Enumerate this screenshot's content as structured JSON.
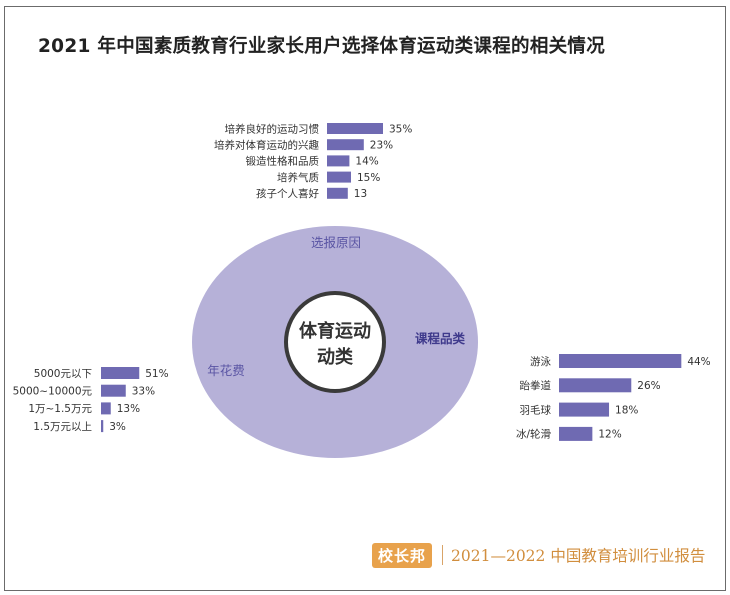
{
  "title": "2021 年中国素质教育行业家长用户选择体育运动类课程的相关情况",
  "center_label_line1": "体育运动",
  "center_label_line2": "动类",
  "ring_labels": {
    "top": "选报原因",
    "right": "课程品类",
    "left": "年花费"
  },
  "brand": {
    "logo_text": "校长邦",
    "report_text": "2021—2022 中国教育培训行业报告"
  },
  "colors": {
    "bar": "#6f6ab2",
    "ring": "#b6b1d8",
    "ring_label": "#5a55a4",
    "right_label": "#3f3a8c"
  },
  "chart_data": [
    {
      "type": "bar",
      "orientation": "horizontal",
      "group": "选报原因",
      "categories": [
        "培养良好的运动习惯",
        "培养对体育运动的兴趣",
        "锻造性格和品质",
        "培养气质",
        "孩子个人喜好"
      ],
      "values": [
        35,
        23,
        14,
        15,
        13
      ],
      "value_labels": [
        "35%",
        "23%",
        "14%",
        "15%",
        "13"
      ]
    },
    {
      "type": "bar",
      "orientation": "horizontal",
      "group": "年花费",
      "categories": [
        "5000元以下",
        "5000~10000元",
        "1万~1.5万元",
        "1.5万元以上"
      ],
      "values": [
        51,
        33,
        13,
        3
      ],
      "value_labels": [
        "51%",
        "33%",
        "13%",
        "3%"
      ]
    },
    {
      "type": "bar",
      "orientation": "horizontal",
      "group": "课程品类",
      "categories": [
        "游泳",
        "跆拳道",
        "羽毛球",
        "冰/轮滑"
      ],
      "values": [
        44,
        26,
        18,
        12
      ],
      "value_labels": [
        "44%",
        "26%",
        "18%",
        "12%"
      ]
    }
  ]
}
